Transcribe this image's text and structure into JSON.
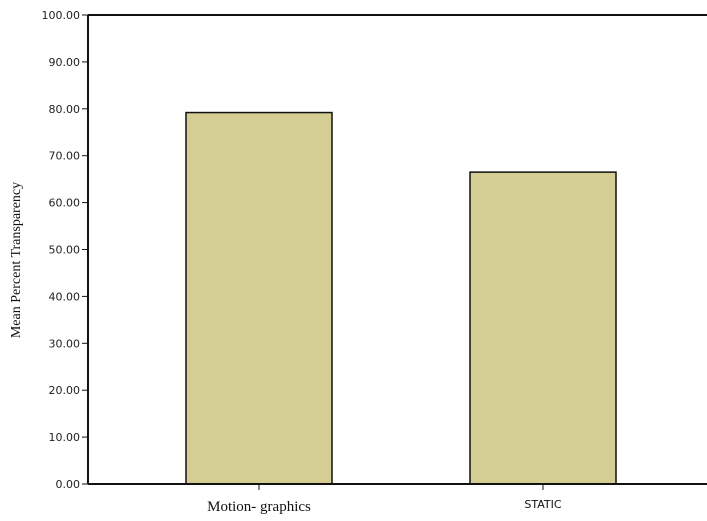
{
  "chart_data": {
    "type": "bar",
    "categories": [
      "Motion- graphics",
      "STATIC"
    ],
    "values": [
      79.2,
      66.5
    ],
    "ylabel": "Mean Percent Transparency",
    "xlabel": "",
    "title": "",
    "ylim": [
      0,
      100
    ],
    "yticks": [
      "0.00",
      "10.00",
      "20.00",
      "30.00",
      "40.00",
      "50.00",
      "60.00",
      "70.00",
      "80.00",
      "90.00",
      "100.00"
    ],
    "grid": false,
    "bar_color": "#d4cd94",
    "bar_edge_color": "#111111"
  }
}
